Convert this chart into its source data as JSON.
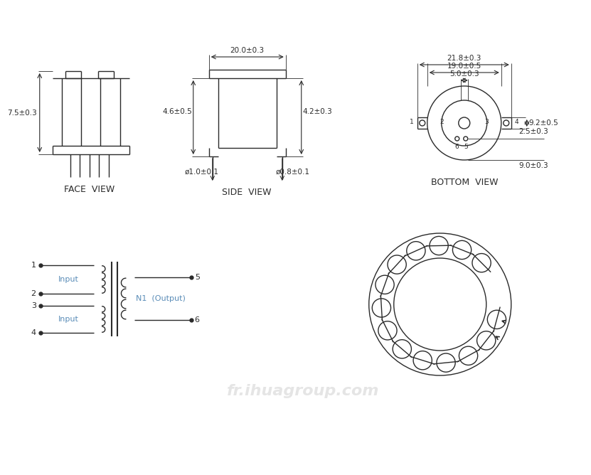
{
  "bg_color": "#ffffff",
  "line_color": "#2a2a2a",
  "dim_color": "#2a2a2a",
  "label_color": "#5b8db8",
  "watermark": "fr.ihuagroup.com",
  "face_view_label": "FACE  VIEW",
  "side_view_label": "SIDE  VIEW",
  "bottom_view_label": "BOTTOM  VIEW",
  "dims": {
    "face_h": "7.5±0.3",
    "side_top": "20.0±0.3",
    "side_left": "4.6±0.5",
    "side_right": "4.2±0.3",
    "side_pin_left": "ø1.0±0.1",
    "side_pin_right": "ø0.8±0.1",
    "bottom_w1": "21.8±0.3",
    "bottom_w2": "19.0±0.5",
    "bottom_w3": "5.0±0.3",
    "bottom_h1": "9.2±0.5",
    "bottom_h2": "2.5±0.3",
    "bottom_h3": "9.0±0.3"
  },
  "schematic_text_input": "Input",
  "schematic_text_output": "N1  (Output)"
}
